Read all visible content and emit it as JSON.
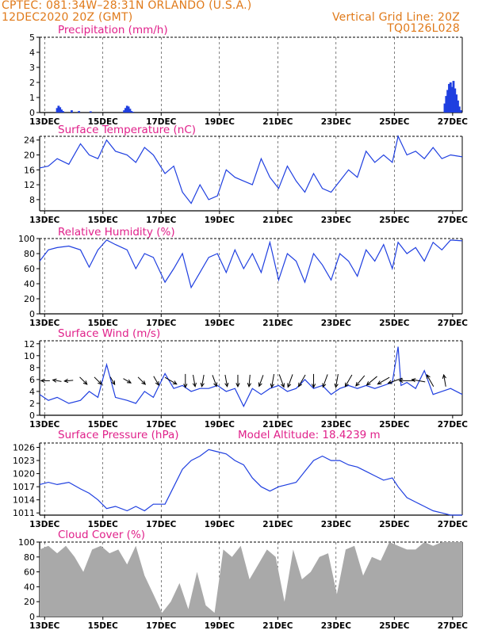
{
  "header": {
    "station_line": "CPTEC:   081:34W–28:31N   ORLANDO (U.S.A.)",
    "date_line": "12DEC2020 20Z (GMT)",
    "grid_note": "Vertical Grid Line: 20Z",
    "run_code": "TQ0126L028"
  },
  "colors": {
    "header": "#e07a1a",
    "title": "#e0208a",
    "series": "#1f3fe0",
    "cloud": "#a9a9a9",
    "grid": "#000000"
  },
  "x_axis": {
    "start": "12DEC2020 20Z",
    "end": "27DEC2020 00Z",
    "tick_labels": [
      "13DEC",
      "15DEC",
      "17DEC",
      "19DEC",
      "21DEC",
      "23DEC",
      "25DEC",
      "27DEC"
    ],
    "tick_days": [
      0.17,
      2.17,
      4.17,
      6.17,
      8.17,
      10.17,
      12.17,
      14.17
    ]
  },
  "chart_data": [
    {
      "type": "bar",
      "title": "Precipitation (mm/h)",
      "ylim": [
        0,
        5
      ],
      "yticks": [
        "0",
        "1",
        "2",
        "3",
        "4",
        "5"
      ],
      "x_unit": "days since 12DEC2020 20Z",
      "x": [
        0.6,
        0.65,
        0.7,
        0.75,
        0.8,
        1.1,
        1.35,
        1.75,
        2.9,
        2.95,
        3.0,
        3.05,
        3.1,
        3.15,
        3.2,
        13.9,
        13.95,
        14.0,
        14.05,
        14.1,
        14.15,
        14.2,
        14.25,
        14.3,
        14.35,
        14.4,
        14.45
      ],
      "values": [
        0.3,
        0.45,
        0.35,
        0.2,
        0.1,
        0.15,
        0.1,
        0.08,
        0.15,
        0.3,
        0.45,
        0.4,
        0.25,
        0.1,
        0.05,
        0.6,
        1.1,
        1.5,
        1.9,
        2.0,
        1.7,
        2.1,
        1.6,
        1.2,
        0.8,
        0.4,
        0.15
      ]
    },
    {
      "type": "line",
      "title": "Surface Temperature (nC)",
      "ylim": [
        5,
        25
      ],
      "yticks": [
        "8",
        "12",
        "16",
        "20",
        "24"
      ],
      "x_unit": "days since 12DEC2020 20Z",
      "x": [
        0,
        0.3,
        0.6,
        1.0,
        1.4,
        1.7,
        2.0,
        2.3,
        2.6,
        3.0,
        3.3,
        3.6,
        3.9,
        4.3,
        4.6,
        4.9,
        5.2,
        5.5,
        5.8,
        6.1,
        6.4,
        6.7,
        7.0,
        7.3,
        7.6,
        7.9,
        8.2,
        8.5,
        8.8,
        9.1,
        9.4,
        9.7,
        10.0,
        10.3,
        10.6,
        10.9,
        11.2,
        11.5,
        11.8,
        12.1,
        12.3,
        12.6,
        12.9,
        13.2,
        13.5,
        13.8,
        14.1,
        14.5
      ],
      "values": [
        16.5,
        17,
        19,
        17.5,
        23,
        20,
        19,
        24,
        21,
        20,
        18,
        22,
        20,
        15,
        17,
        10,
        7,
        12,
        8,
        9,
        16,
        14,
        13,
        12,
        19,
        14,
        11,
        17,
        13,
        10,
        15,
        11,
        10,
        13,
        16,
        14,
        21,
        18,
        20,
        18,
        25,
        20,
        21,
        19,
        22,
        19,
        20,
        19.5
      ]
    },
    {
      "type": "line",
      "title": "Relative Humidity (%)",
      "ylim": [
        0,
        100
      ],
      "yticks": [
        "0",
        "20",
        "40",
        "60",
        "80",
        "100"
      ],
      "x_unit": "days since 12DEC2020 20Z",
      "x": [
        0,
        0.3,
        0.6,
        1.0,
        1.4,
        1.7,
        2.0,
        2.3,
        2.6,
        3.0,
        3.3,
        3.6,
        3.9,
        4.3,
        4.6,
        4.9,
        5.2,
        5.5,
        5.8,
        6.1,
        6.4,
        6.7,
        7.0,
        7.3,
        7.6,
        7.9,
        8.2,
        8.5,
        8.8,
        9.1,
        9.4,
        9.7,
        10.0,
        10.3,
        10.6,
        10.9,
        11.2,
        11.5,
        11.8,
        12.1,
        12.3,
        12.6,
        12.9,
        13.2,
        13.5,
        13.8,
        14.1,
        14.5
      ],
      "values": [
        70,
        85,
        88,
        90,
        85,
        62,
        85,
        98,
        92,
        85,
        60,
        80,
        75,
        42,
        60,
        80,
        35,
        55,
        75,
        80,
        55,
        85,
        60,
        80,
        55,
        95,
        45,
        80,
        70,
        42,
        80,
        65,
        45,
        80,
        70,
        50,
        85,
        70,
        92,
        60,
        95,
        80,
        88,
        70,
        95,
        85,
        98,
        97
      ]
    },
    {
      "type": "line",
      "title": "Surface Wind (m/s)",
      "ylim": [
        0,
        12.5
      ],
      "yticks": [
        "0",
        "2",
        "4",
        "6",
        "8",
        "10",
        "12"
      ],
      "x_unit": "days since 12DEC2020 20Z",
      "x": [
        0,
        0.3,
        0.6,
        1.0,
        1.4,
        1.7,
        2.0,
        2.3,
        2.6,
        3.0,
        3.3,
        3.6,
        3.9,
        4.3,
        4.6,
        4.9,
        5.2,
        5.5,
        5.8,
        6.1,
        6.4,
        6.7,
        7.0,
        7.3,
        7.6,
        7.9,
        8.2,
        8.5,
        8.8,
        9.1,
        9.4,
        9.7,
        10.0,
        10.3,
        10.6,
        10.9,
        11.2,
        11.5,
        11.8,
        12.1,
        12.3,
        12.4,
        12.6,
        12.9,
        13.2,
        13.5,
        13.8,
        14.1,
        14.5
      ],
      "values": [
        3.5,
        2.5,
        3,
        2,
        2.5,
        4,
        3,
        8.5,
        3,
        2.5,
        2,
        4,
        3,
        7,
        4.5,
        5,
        4,
        4.5,
        4.5,
        5,
        4,
        4.5,
        1.5,
        4.5,
        3.5,
        4.5,
        5,
        4,
        4.5,
        6,
        4.5,
        5,
        3.5,
        4.5,
        5,
        4.5,
        5,
        4.5,
        5,
        5.5,
        11.5,
        5,
        5.5,
        4.5,
        7.5,
        3.5,
        4,
        4.5,
        3.5
      ],
      "arrows": {
        "x": [
          0.2,
          0.6,
          1.0,
          1.5,
          2.0,
          2.5,
          3.0,
          3.5,
          4.0,
          4.5,
          5.0,
          5.3,
          5.6,
          6.0,
          6.4,
          6.8,
          7.2,
          7.6,
          8.0,
          8.3,
          8.6,
          9.0,
          9.4,
          9.8,
          10.2,
          10.6,
          11.0,
          11.4,
          11.8,
          12.2,
          12.6,
          13.0,
          13.4,
          13.9
        ],
        "dir_deg": [
          270,
          280,
          265,
          135,
          135,
          150,
          120,
          135,
          150,
          120,
          180,
          170,
          190,
          160,
          170,
          180,
          185,
          200,
          190,
          160,
          200,
          210,
          180,
          200,
          190,
          210,
          220,
          230,
          240,
          250,
          270,
          280,
          330,
          350
        ],
        "length": [
          3,
          3,
          3,
          4,
          4,
          3,
          3,
          4,
          4,
          6,
          6,
          5,
          5,
          5,
          5,
          5,
          5,
          5,
          6,
          6,
          6,
          6,
          6,
          6,
          6,
          6,
          6,
          6,
          6,
          7,
          7,
          6,
          6,
          5
        ]
      }
    },
    {
      "type": "line",
      "title": "Surface Pressure (hPa)",
      "annotation": "Model Altitude: 18.4239 m",
      "ylim": [
        1010.5,
        1027
      ],
      "yticks": [
        "1011",
        "1014",
        "1017",
        "1020",
        "1023",
        "1026"
      ],
      "x_unit": "days since 12DEC2020 20Z",
      "x": [
        0,
        0.3,
        0.6,
        1.0,
        1.4,
        1.7,
        2.0,
        2.3,
        2.6,
        3.0,
        3.3,
        3.6,
        3.9,
        4.3,
        4.6,
        4.9,
        5.2,
        5.5,
        5.8,
        6.1,
        6.4,
        6.7,
        7.0,
        7.3,
        7.6,
        7.9,
        8.2,
        8.5,
        8.8,
        9.1,
        9.4,
        9.7,
        10.0,
        10.3,
        10.6,
        10.9,
        11.2,
        11.5,
        11.8,
        12.1,
        12.3,
        12.6,
        12.9,
        13.2,
        13.5,
        13.8,
        14.1,
        14.5
      ],
      "values": [
        1017.5,
        1018,
        1017.5,
        1018,
        1016.5,
        1015.5,
        1014,
        1012,
        1012.5,
        1011.5,
        1012.5,
        1011.5,
        1013,
        1013,
        1017,
        1021,
        1023,
        1024,
        1025.5,
        1025,
        1024.5,
        1023,
        1022,
        1019,
        1017,
        1016,
        1017,
        1017.5,
        1018,
        1020.5,
        1023,
        1024,
        1023,
        1023,
        1022,
        1021.5,
        1020.5,
        1019.5,
        1018.5,
        1019,
        1017,
        1014.5,
        1013.5,
        1012.5,
        1011.5,
        1011,
        1010.5,
        1009
      ]
    },
    {
      "type": "area",
      "title": "Cloud Cover (%)",
      "ylim": [
        0,
        100
      ],
      "yticks": [
        "0",
        "20",
        "40",
        "60",
        "80",
        "100"
      ],
      "x_unit": "days since 12DEC2020 20Z",
      "x": [
        0,
        0.3,
        0.6,
        0.9,
        1.2,
        1.5,
        1.8,
        2.1,
        2.4,
        2.7,
        3.0,
        3.3,
        3.6,
        3.9,
        4.2,
        4.5,
        4.8,
        5.1,
        5.4,
        5.7,
        6.0,
        6.3,
        6.6,
        6.9,
        7.2,
        7.5,
        7.8,
        8.1,
        8.4,
        8.7,
        9.0,
        9.3,
        9.6,
        9.9,
        10.2,
        10.5,
        10.8,
        11.1,
        11.4,
        11.7,
        12.0,
        12.3,
        12.6,
        12.9,
        13.2,
        13.5,
        13.8,
        14.1,
        14.5
      ],
      "values": [
        90,
        95,
        85,
        95,
        80,
        60,
        90,
        95,
        85,
        90,
        70,
        95,
        55,
        30,
        5,
        20,
        45,
        10,
        60,
        15,
        5,
        90,
        80,
        95,
        50,
        70,
        90,
        80,
        20,
        90,
        50,
        60,
        80,
        85,
        30,
        90,
        95,
        55,
        80,
        75,
        100,
        95,
        90,
        90,
        100,
        95,
        100,
        100,
        100
      ]
    }
  ]
}
